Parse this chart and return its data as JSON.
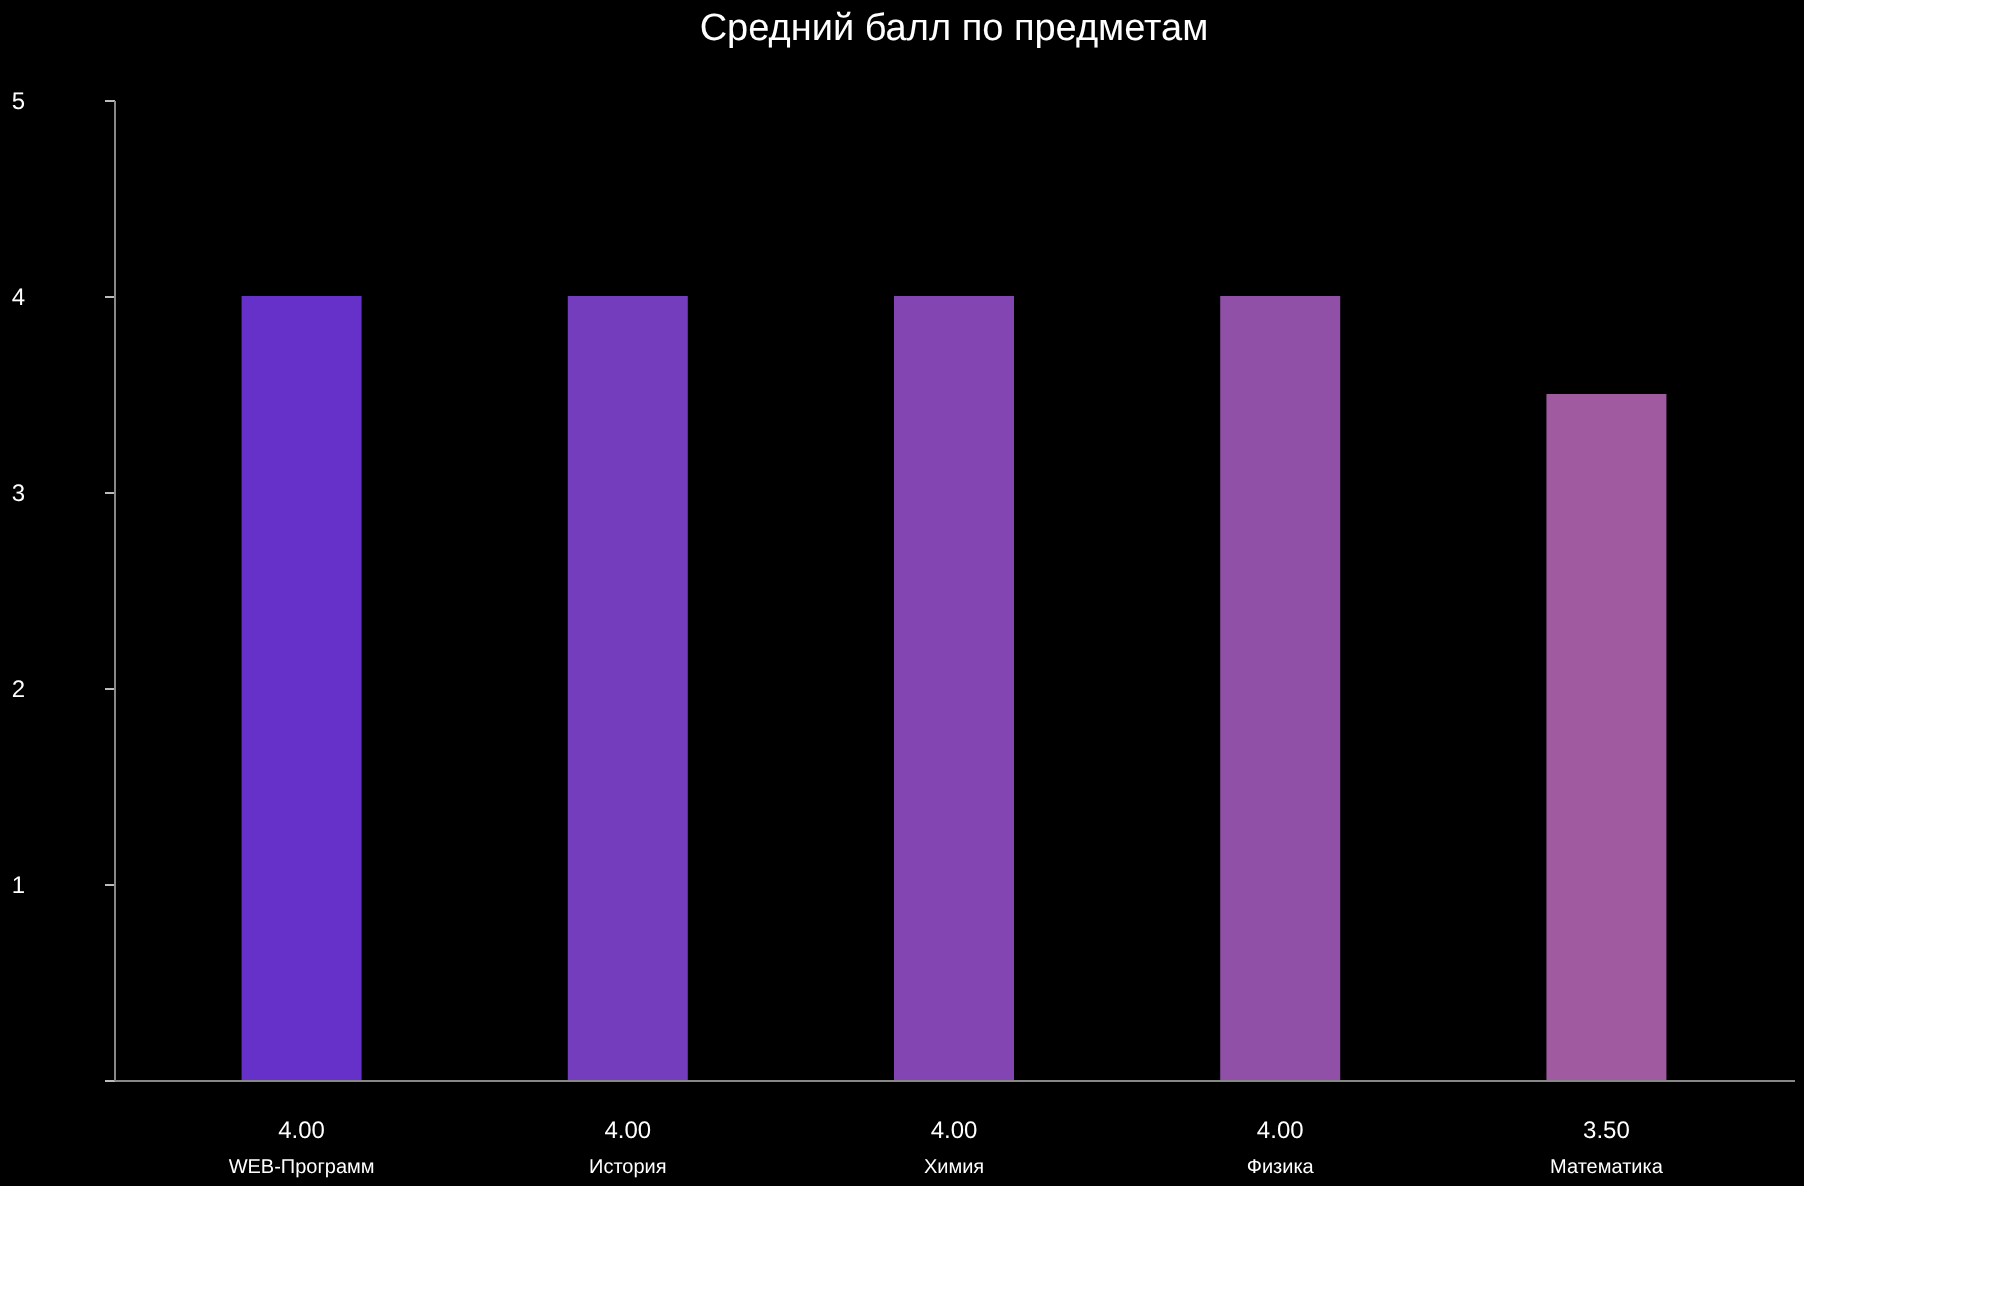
{
  "chart_data": {
    "type": "bar",
    "title": "Средний балл по предметам",
    "categories": [
      "WEB-Программ",
      "История",
      "Химия",
      "Физика",
      "Математика"
    ],
    "values": [
      4,
      4,
      4,
      4,
      3.5
    ],
    "value_labels": [
      "4.00",
      "4.00",
      "4.00",
      "4.00",
      "3.50"
    ],
    "colors": [
      "#6631c9",
      "#743dbd",
      "#8245b1",
      "#9050a8",
      "#a05aa0"
    ],
    "ylim": [
      0,
      5
    ],
    "yticks": [
      {
        "value": 0,
        "label": null
      },
      1,
      2,
      3,
      4,
      5
    ],
    "grid": false
  }
}
